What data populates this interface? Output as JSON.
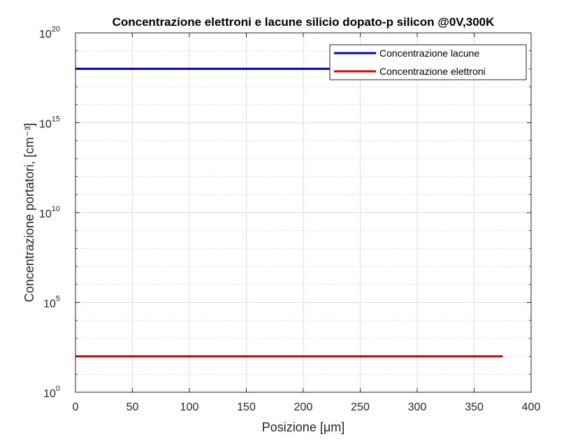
{
  "chart_data": {
    "type": "line",
    "title": "Concentrazione elettroni e lacune silicio dopato-p silicon @0V,300K",
    "xlabel": "Posizione [μm]",
    "ylabel": "Concentrazione portatori, [cm⁻³]",
    "xlim": [
      0,
      400
    ],
    "ylim": [
      1,
      1e+20
    ],
    "yscale": "log",
    "grid": true,
    "legend_position": "top-right",
    "x_ticks": [
      "0",
      "50",
      "100",
      "150",
      "200",
      "250",
      "300",
      "350",
      "400"
    ],
    "y_ticks": [
      {
        "base": "10",
        "exp": "0"
      },
      {
        "base": "10",
        "exp": "5"
      },
      {
        "base": "10",
        "exp": "10"
      },
      {
        "base": "10",
        "exp": "15"
      },
      {
        "base": "10",
        "exp": "20"
      }
    ],
    "series": [
      {
        "name": "Concentrazione lacune",
        "color": "#0000cc",
        "x": [
          0,
          375
        ],
        "y": [
          1e+18,
          1e+18
        ]
      },
      {
        "name": "Concentrazione elettroni",
        "color": "#dd0000",
        "x": [
          0,
          375
        ],
        "y": [
          100,
          100
        ]
      }
    ]
  }
}
